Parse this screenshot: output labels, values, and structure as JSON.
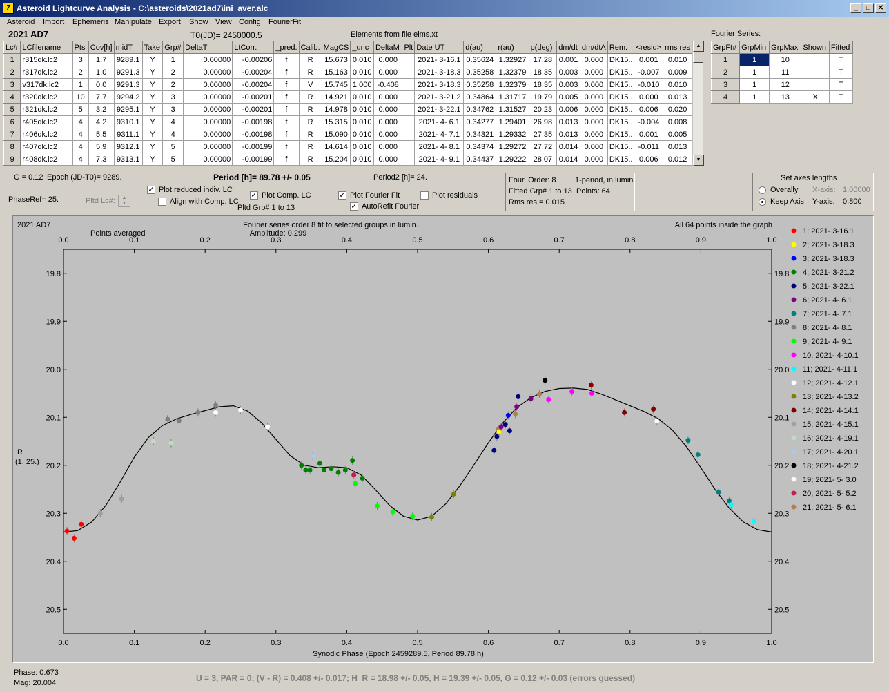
{
  "window": {
    "title": "Asteroid Lightcurve Analysis - C:\\asteroids\\2021ad7\\ini_aver.alc",
    "icon": "app-icon"
  },
  "menu": [
    "Asteroid",
    "Import",
    "Ephemeris",
    "Manipulate",
    "Export",
    "Show",
    "View",
    "Config",
    "FourierFit"
  ],
  "header": {
    "asteroid": "2021 AD7",
    "t0": "T0(JD)= 2450000.5",
    "elements": "Elements from file elms.xt",
    "fourier_label": "Fourier Series:"
  },
  "lc_table": {
    "columns": [
      "Lc#",
      "LCfilename",
      "Pts",
      "Cov[h]",
      "midT",
      "Take",
      "Grp#",
      "DeltaT",
      "LtCorr.",
      "_pred.",
      "Calib.",
      "MagCS",
      "_unc",
      "DeltaM",
      "Plt",
      "Date UT",
      "d(au)",
      "r(au)",
      "p(deg)",
      "dm/dt",
      "dm/dtA",
      "Rem.",
      "<resid>",
      "rms res"
    ],
    "rows": [
      [
        "1",
        "r315dk.lc2",
        "3",
        "1.7",
        "9289.1",
        "Y",
        "1",
        "0.00000",
        "-0.00206",
        "f",
        "R",
        "15.673",
        "0.010",
        "0.000",
        "",
        "2021- 3-16.1",
        "0.35624",
        "1.32927",
        "17.28",
        "0.001",
        "0.000",
        "DK15..",
        "0.001",
        "0.010"
      ],
      [
        "2",
        "r317dk.lc2",
        "2",
        "1.0",
        "9291.3",
        "Y",
        "2",
        "0.00000",
        "-0.00204",
        "f",
        "R",
        "15.163",
        "0.010",
        "0.000",
        "",
        "2021- 3-18.3",
        "0.35258",
        "1.32379",
        "18.35",
        "0.003",
        "0.000",
        "DK15..",
        "-0.007",
        "0.009"
      ],
      [
        "3",
        "v317dk.lc2",
        "1",
        "0.0",
        "9291.3",
        "Y",
        "2",
        "0.00000",
        "-0.00204",
        "f",
        "V",
        "15.745",
        "1.000",
        "-0.408",
        "",
        "2021- 3-18.3",
        "0.35258",
        "1.32379",
        "18.35",
        "0.003",
        "0.000",
        "DK15..",
        "-0.010",
        "0.010"
      ],
      [
        "4",
        "r320dk.lc2",
        "10",
        "7.7",
        "9294.2",
        "Y",
        "3",
        "0.00000",
        "-0.00201",
        "f",
        "R",
        "14.921",
        "0.010",
        "0.000",
        "",
        "2021- 3-21.2",
        "0.34864",
        "1.31717",
        "19.79",
        "0.005",
        "0.000",
        "DK15..",
        "0.000",
        "0.013"
      ],
      [
        "5",
        "r321dk.lc2",
        "5",
        "3.2",
        "9295.1",
        "Y",
        "3",
        "0.00000",
        "-0.00201",
        "f",
        "R",
        "14.978",
        "0.010",
        "0.000",
        "",
        "2021- 3-22.1",
        "0.34762",
        "1.31527",
        "20.23",
        "0.006",
        "0.000",
        "DK15..",
        "0.006",
        "0.020"
      ],
      [
        "6",
        "r405dk.lc2",
        "4",
        "4.2",
        "9310.1",
        "Y",
        "4",
        "0.00000",
        "-0.00198",
        "f",
        "R",
        "15.315",
        "0.010",
        "0.000",
        "",
        "2021- 4- 6.1",
        "0.34277",
        "1.29401",
        "26.98",
        "0.013",
        "0.000",
        "DK15..",
        "-0.004",
        "0.008"
      ],
      [
        "7",
        "r406dk.lc2",
        "4",
        "5.5",
        "9311.1",
        "Y",
        "4",
        "0.00000",
        "-0.00198",
        "f",
        "R",
        "15.090",
        "0.010",
        "0.000",
        "",
        "2021- 4- 7.1",
        "0.34321",
        "1.29332",
        "27.35",
        "0.013",
        "0.000",
        "DK15..",
        "0.001",
        "0.005"
      ],
      [
        "8",
        "r407dk.lc2",
        "4",
        "5.9",
        "9312.1",
        "Y",
        "5",
        "0.00000",
        "-0.00199",
        "f",
        "R",
        "14.614",
        "0.010",
        "0.000",
        "",
        "2021- 4- 8.1",
        "0.34374",
        "1.29272",
        "27.72",
        "0.014",
        "0.000",
        "DK15..",
        "-0.011",
        "0.013"
      ],
      [
        "9",
        "r408dk.lc2",
        "4",
        "7.3",
        "9313.1",
        "Y",
        "5",
        "0.00000",
        "-0.00199",
        "f",
        "R",
        "15.204",
        "0.010",
        "0.000",
        "",
        "2021- 4- 9.1",
        "0.34437",
        "1.29222",
        "28.07",
        "0.014",
        "0.000",
        "DK15..",
        "0.006",
        "0.012"
      ]
    ]
  },
  "fourier_table": {
    "columns": [
      "GrpFt#",
      "GrpMin",
      "GrpMax",
      "Shown",
      "Fitted"
    ],
    "rows": [
      [
        "1",
        "1",
        "10",
        "",
        "T"
      ],
      [
        "2",
        "1",
        "11",
        "",
        "T"
      ],
      [
        "3",
        "1",
        "12",
        "",
        "T"
      ],
      [
        "4",
        "1",
        "13",
        "X",
        "T"
      ]
    ]
  },
  "params": {
    "g": "G = 0.12",
    "epoch": "Epoch (JD-T0)= 9289.",
    "period": "Period [h]= 89.78 +/- 0.05",
    "period2": "Period2 [h]= 24.",
    "phaseref": "PhaseRef= 25.",
    "pltd_lc": "Pltd Lc#:",
    "pltd_grp": "Pltd Grp#  1   to   13"
  },
  "options": {
    "plot_reduced": "Plot reduced indiv. LC",
    "align_comp": "Align with Comp. LC",
    "plot_comp": "Plot Comp. LC",
    "plot_fourier": "Plot Fourier Fit",
    "autorefit": "AutoRefit Fourier",
    "plot_residuals": "Plot residuals"
  },
  "fit_info": {
    "order": "Four. Order:  8",
    "period_mode": "1-period, in lumin.",
    "fitted": "Fitted Grp# 1 to 13",
    "points": "Points: 64",
    "rms": "Rms res      = 0.015"
  },
  "axes_box": {
    "title": "Set axes lengths",
    "overall": "Overally",
    "keep": "Keep Axis",
    "xaxis_label": "X-axis:",
    "xaxis_val": "1.00000",
    "yaxis_label": "Y-axis:",
    "yaxis_val": "0.800"
  },
  "chart_data": {
    "type": "scatter",
    "title": "2021 AD7",
    "subtitle": "Fourier series order 8 fit to selected groups in lumin.",
    "amplitude": "Amplitude: 0.299",
    "note_left": "Points averaged",
    "note_right": "All 64 points inside the graph",
    "xlabel": "Synodic Phase (Epoch 2459289.5, Period 89.78 h)",
    "ylabel": "R",
    "ylabel2": "(1, 25.)",
    "xlim": [
      0,
      1
    ],
    "ylim": [
      20.6,
      19.8
    ],
    "y_reversed": true,
    "xticks": [
      "0.0",
      "0.1",
      "0.2",
      "0.3",
      "0.4",
      "0.5",
      "0.6",
      "0.7",
      "0.8",
      "0.9",
      "1.0"
    ],
    "yticks": [
      "19.8",
      "19.9",
      "20.0",
      "20.1",
      "20.2",
      "20.3",
      "20.4",
      "20.5"
    ],
    "legend": [
      {
        "label": "1; 2021- 3-16.1",
        "color": "#ff0000"
      },
      {
        "label": "2; 2021- 3-18.3",
        "color": "#ffff00"
      },
      {
        "label": "3; 2021- 3-18.3",
        "color": "#0000ff"
      },
      {
        "label": "4; 2021- 3-21.2",
        "color": "#008000"
      },
      {
        "label": "5; 2021- 3-22.1",
        "color": "#000080"
      },
      {
        "label": "6; 2021- 4- 6.1",
        "color": "#800080"
      },
      {
        "label": "7; 2021- 4- 7.1",
        "color": "#008080"
      },
      {
        "label": "8; 2021- 4- 8.1",
        "color": "#808080"
      },
      {
        "label": "9; 2021- 4- 9.1",
        "color": "#00ff00"
      },
      {
        "label": "10; 2021- 4-10.1",
        "color": "#ff00ff"
      },
      {
        "label": "11; 2021- 4-11.1",
        "color": "#00ffff"
      },
      {
        "label": "12; 2021- 4-12.1",
        "color": "#ffffff"
      },
      {
        "label": "13; 2021- 4-13.2",
        "color": "#808000"
      },
      {
        "label": "14; 2021- 4-14.1",
        "color": "#800000"
      },
      {
        "label": "15; 2021- 4-15.1",
        "color": "#a0a0a0"
      },
      {
        "label": "16; 2021- 4-19.1",
        "color": "#c0dcc0"
      },
      {
        "label": "17; 2021- 4-20.1",
        "color": "#a6caf0"
      },
      {
        "label": "18; 2021- 4-21.2",
        "color": "#000000"
      },
      {
        "label": "19; 2021- 5- 3.0",
        "color": "#fffbf0"
      },
      {
        "label": "20; 2021- 5- 5.2",
        "color": "#c0204a"
      },
      {
        "label": "21; 2021- 5- 6.1",
        "color": "#b08050"
      }
    ],
    "points": [
      [
        0.005,
        20.337,
        1
      ],
      [
        0.015,
        20.352,
        1
      ],
      [
        0.025,
        20.323,
        1
      ],
      [
        0.052,
        20.3,
        15
      ],
      [
        0.082,
        20.27,
        15
      ],
      [
        0.127,
        20.15,
        16
      ],
      [
        0.147,
        20.104,
        8
      ],
      [
        0.152,
        20.154,
        16
      ],
      [
        0.163,
        20.107,
        8
      ],
      [
        0.19,
        20.09,
        8
      ],
      [
        0.215,
        20.075,
        8
      ],
      [
        0.215,
        20.09,
        12
      ],
      [
        0.25,
        20.085,
        19
      ],
      [
        0.288,
        20.12,
        12
      ],
      [
        0.336,
        20.2,
        4
      ],
      [
        0.342,
        20.21,
        4
      ],
      [
        0.348,
        20.21,
        4
      ],
      [
        0.352,
        20.18,
        17
      ],
      [
        0.362,
        20.196,
        4
      ],
      [
        0.368,
        20.21,
        4
      ],
      [
        0.378,
        20.207,
        4
      ],
      [
        0.388,
        20.215,
        4
      ],
      [
        0.398,
        20.21,
        4
      ],
      [
        0.408,
        20.19,
        4
      ],
      [
        0.41,
        20.22,
        20
      ],
      [
        0.412,
        20.238,
        9
      ],
      [
        0.422,
        20.227,
        4
      ],
      [
        0.443,
        20.285,
        9
      ],
      [
        0.465,
        20.297,
        9
      ],
      [
        0.493,
        20.306,
        9
      ],
      [
        0.52,
        20.308,
        13
      ],
      [
        0.551,
        20.26,
        13
      ],
      [
        0.608,
        20.169,
        5
      ],
      [
        0.612,
        20.14,
        5
      ],
      [
        0.614,
        20.125,
        21
      ],
      [
        0.615,
        20.13,
        2
      ],
      [
        0.618,
        20.12,
        6
      ],
      [
        0.624,
        20.115,
        5
      ],
      [
        0.628,
        20.096,
        3
      ],
      [
        0.63,
        20.128,
        5
      ],
      [
        0.638,
        20.093,
        21
      ],
      [
        0.64,
        20.078,
        6
      ],
      [
        0.642,
        20.057,
        5
      ],
      [
        0.66,
        20.061,
        6
      ],
      [
        0.672,
        20.052,
        21
      ],
      [
        0.68,
        20.023,
        18
      ],
      [
        0.685,
        20.063,
        10
      ],
      [
        0.718,
        20.046,
        10
      ],
      [
        0.745,
        20.033,
        14
      ],
      [
        0.746,
        20.05,
        10
      ],
      [
        0.792,
        20.09,
        14
      ],
      [
        0.833,
        20.083,
        14
      ],
      [
        0.838,
        20.108,
        19
      ],
      [
        0.882,
        20.148,
        7
      ],
      [
        0.896,
        20.178,
        7
      ],
      [
        0.925,
        20.256,
        7
      ],
      [
        0.94,
        20.274,
        7
      ],
      [
        0.943,
        20.282,
        11
      ],
      [
        0.975,
        20.317,
        11
      ]
    ],
    "fit_curve": [
      [
        0,
        20.339
      ],
      [
        0.02,
        20.336
      ],
      [
        0.04,
        20.318
      ],
      [
        0.06,
        20.283
      ],
      [
        0.08,
        20.235
      ],
      [
        0.1,
        20.183
      ],
      [
        0.12,
        20.142
      ],
      [
        0.14,
        20.117
      ],
      [
        0.16,
        20.103
      ],
      [
        0.18,
        20.094
      ],
      [
        0.2,
        20.086
      ],
      [
        0.22,
        20.078
      ],
      [
        0.24,
        20.076
      ],
      [
        0.26,
        20.087
      ],
      [
        0.28,
        20.112
      ],
      [
        0.3,
        20.146
      ],
      [
        0.32,
        20.18
      ],
      [
        0.34,
        20.2
      ],
      [
        0.36,
        20.205
      ],
      [
        0.38,
        20.203
      ],
      [
        0.4,
        20.205
      ],
      [
        0.42,
        20.22
      ],
      [
        0.44,
        20.25
      ],
      [
        0.46,
        20.283
      ],
      [
        0.48,
        20.306
      ],
      [
        0.5,
        20.314
      ],
      [
        0.52,
        20.306
      ],
      [
        0.54,
        20.28
      ],
      [
        0.56,
        20.242
      ],
      [
        0.58,
        20.198
      ],
      [
        0.6,
        20.153
      ],
      [
        0.62,
        20.112
      ],
      [
        0.64,
        20.08
      ],
      [
        0.66,
        20.059
      ],
      [
        0.68,
        20.046
      ],
      [
        0.7,
        20.04
      ],
      [
        0.72,
        20.039
      ],
      [
        0.74,
        20.042
      ],
      [
        0.76,
        20.052
      ],
      [
        0.78,
        20.064
      ],
      [
        0.8,
        20.076
      ],
      [
        0.82,
        20.088
      ],
      [
        0.84,
        20.103
      ],
      [
        0.86,
        20.127
      ],
      [
        0.88,
        20.162
      ],
      [
        0.9,
        20.205
      ],
      [
        0.92,
        20.25
      ],
      [
        0.94,
        20.289
      ],
      [
        0.96,
        20.318
      ],
      [
        0.98,
        20.334
      ],
      [
        1,
        20.339
      ]
    ]
  },
  "status": {
    "phase": "Phase:  0.673",
    "mag": "Mag:    20.004",
    "results": "U = 3, PAR = 0; (V - R) = 0.408 +/- 0.017; H_R = 18.98 +/- 0.05, H = 19.39 +/- 0.05, G = 0.12 +/- 0.03 (errors guessed)"
  }
}
